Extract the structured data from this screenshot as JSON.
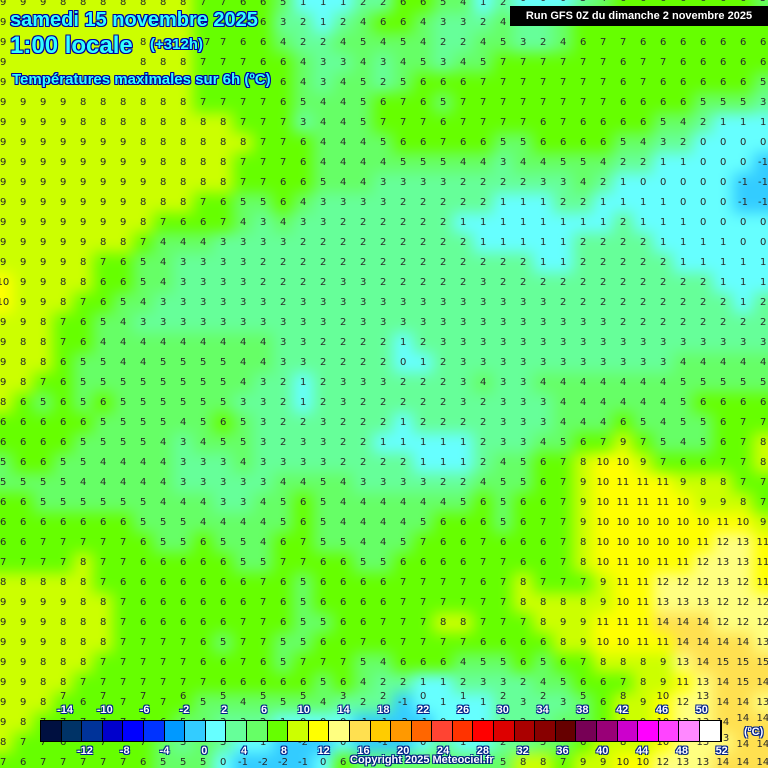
{
  "header": {
    "date": "samedi 15 novembre 2025",
    "time": "1:00 locale",
    "lead": "(+312h)",
    "parameter": "Températures maximales sur 6h (ºC)",
    "run": "Run GFS 0Z du dimanche 2 novembre 2025"
  },
  "footer": {
    "copyright": "Copyright 2025 Meteociel.fr"
  },
  "legend": {
    "unit": "(ºC)",
    "colors": [
      "#001040",
      "#003366",
      "#003399",
      "#0000cc",
      "#0000ff",
      "#0033ff",
      "#0099ff",
      "#33ccff",
      "#66ffff",
      "#66ff99",
      "#66ff66",
      "#66ff00",
      "#ccff00",
      "#ffff00",
      "#ffff80",
      "#ffe050",
      "#ffcc00",
      "#ff9900",
      "#ff6600",
      "#ff4433",
      "#ff3300",
      "#ff0000",
      "#dd0000",
      "#aa0000",
      "#880000",
      "#660000",
      "#770055",
      "#990077",
      "#cc00cc",
      "#ff00ff",
      "#ff44ff",
      "#ff88ff",
      "#ffaaff",
      "#ffffff"
    ],
    "labels_top": [
      "-14",
      "-10",
      "-6",
      "-2",
      "2",
      "6",
      "10",
      "14",
      "18",
      "22",
      "26",
      "30",
      "34",
      "38",
      "42",
      "46",
      "50"
    ],
    "labels_bottom": [
      "-12",
      "-8",
      "-4",
      "0",
      "4",
      "8",
      "12",
      "16",
      "20",
      "24",
      "28",
      "32",
      "36",
      "40",
      "44",
      "48",
      "52"
    ]
  },
  "grid_values": [
    "9 9 9 8 8 8 8 8 8 8 7 7 6 6 5 1 1 1 2 2 6 6 5 4 1 2 0 0 0 3 4 6 6 6 6 6 6 6 5",
    "9 9 9 8 8 8 8 8 8 8 7 7 7 6 3 2 1 2 4 6 6 4 3 3 2 4 3 2 4 6 7 7 6 6 6 6 6 6 6",
    "9 9 9 8 8 8 8 8 8 8 7 7 6 6 4 2 2 4 5 4 5 4 2 2 4 5 3 2 4 6 7 7 6 6 6 6 6 6 6",
    "9 9 9 8 8 8 8 8 8 8 7 7 7 6 6 4 3 3 4 3 4 5 3 4 5 7 7 7 7 7 7 6 7 7 6 6 6 6 6",
    "9 9 9 9 8 8 8 8 8 8 7 7 7 6 6 4 3 4 5 2 5 6 6 6 7 7 7 7 7 7 7 6 7 6 6 6 6 6 5",
    "9 9 9 9 8 8 8 8 8 8 7 7 7 7 6 5 4 4 5 6 7 6 5 7 7 7 7 7 7 7 7 6 6 6 6 5 5 5 3",
    "9 9 9 9 8 8 8 8 8 8 8 8 7 7 7 3 4 4 5 7 7 7 6 7 7 7 7 6 7 6 6 6 6 5 4 2 1 1 1",
    "9 9 9 9 9 9 9 8 8 8 8 8 8 7 7 6 4 4 4 5 6 6 7 6 6 5 5 6 6 6 6 5 4 3 2 0 0 0 0",
    "9 9 9 9 9 9 9 9 8 8 8 8 7 7 7 6 4 4 4 4 5 5 5 4 4 3 4 4 5 5 4 2 2 1 1 0 0 0 -1",
    "9 9 9 9 9 9 9 9 8 8 8 8 7 7 6 6 5 4 4 3 3 3 3 2 2 2 2 3 3 4 2 1 0 0 0 0 0 -1 -1",
    "9 9 9 9 9 9 9 8 8 8 7 6 5 5 6 4 3 3 3 3 2 2 2 2 2 1 1 1 2 2 1 1 1 1 0 0 0 -1 -1",
    "9 9 9 9 9 9 9 8 7 6 6 7 4 3 4 3 3 2 2 2 2 2 2 1 1 1 1 1 1 1 1 2 1 1 1 0 0 0 0",
    "9 9 9 9 9 8 8 7 4 4 4 3 3 3 3 2 2 2 2 2 2 2 2 2 1 1 1 1 1 2 2 2 2 1 1 1 1 0 0",
    "9 9 9 9 8 7 6 5 4 3 3 3 3 2 2 2 2 2 2 2 2 2 2 2 2 2 2 1 1 2 2 2 2 2 1 1 1 1 1",
    "10 9 9 8 8 6 6 5 4 3 3 3 3 2 2 2 2 3 3 2 2 2 2 2 3 2 2 2 2 2 2 2 2 2 2 2 1 1 1",
    "10 9 9 8 7 6 5 4 3 3 3 3 3 3 2 3 3 3 3 3 3 3 3 3 3 3 3 3 2 2 2 2 2 2 2 2 2 1 2",
    "9 9 8 7 6 5 4 3 3 3 3 3 3 3 3 3 3 2 3 3 3 3 3 3 3 3 3 3 3 3 3 2 2 2 2 2 2 2 2",
    "9 8 8 7 6 4 4 4 4 4 4 4 4 4 3 3 2 2 2 2 1 2 3 3 3 3 3 3 3 3 3 3 3 3 3 3 3 3 3",
    "9 8 8 6 5 5 4 4 5 5 5 5 4 4 3 3 2 2 2 2 0 1 2 3 3 3 3 3 3 3 3 3 3 3 4 4 4 4 4",
    "9 8 7 6 5 5 5 5 5 5 5 5 4 3 2 1 2 3 3 3 2 2 2 3 4 3 3 4 4 4 4 4 4 4 5 5 5 5 5",
    "8 6 5 6 5 6 5 5 5 5 5 5 3 3 2 1 2 3 2 2 2 2 2 3 2 3 3 3 4 4 4 4 4 4 5 6 6 6 6",
    "6 6 6 6 6 5 5 5 5 4 5 6 5 3 2 2 3 2 2 2 1 2 2 2 2 3 3 3 4 4 4 6 5 4 5 5 6 7 7",
    "6 6 6 6 5 5 5 5 4 3 4 5 5 3 2 3 3 2 2 1 1 1 1 1 2 3 3 4 5 6 7 9 7 5 4 5 6 7 8",
    "5 6 6 5 5 4 4 4 4 3 3 3 4 3 3 3 3 2 2 2 2 1 1 1 2 4 5 6 7 8 10 10 9 7 6 6 7 7 8",
    "5 5 5 5 4 4 4 4 4 3 3 3 3 3 4 4 5 4 3 3 3 3 2 2 4 5 5 6 7 9 10 11 11 11 9 8 8 7 7",
    "6 6 5 5 5 5 5 5 4 4 4 3 3 4 5 6 5 4 4 4 4 4 4 5 6 5 6 6 7 9 10 11 11 11 10 9 9 8 7",
    "6 6 6 6 6 6 6 5 5 5 4 4 4 4 5 6 5 4 4 4 4 5 6 6 6 5 6 7 7 9 10 10 10 10 10 10 11 10 9",
    "6 6 7 7 7 7 7 6 5 5 6 5 5 4 6 7 5 5 4 4 5 7 6 6 7 6 6 6 7 8 10 10 10 10 10 11 12 13 11",
    "7 7 7 7 8 7 7 6 6 6 6 6 5 5 7 7 6 6 5 5 6 6 6 6 7 7 6 6 7 8 10 11 10 11 11 12 13 13 11",
    "8 8 8 8 8 7 6 6 6 6 6 6 6 7 6 5 6 6 6 6 7 7 7 7 6 7 8 7 7 7 9 11 11 12 12 12 13 12 11",
    "9 9 9 9 8 8 7 6 6 6 6 6 6 7 6 5 6 6 6 6 7 7 7 7 7 7 8 8 8 8 9 10 11 13 13 13 12 12 12",
    "9 9 9 8 8 8 7 6 6 6 6 6 7 7 6 5 5 6 6 7 7 7 8 8 7 7 7 8 9 9 11 11 11 14 14 14 12 12 12",
    "9 9 9 8 8 8 7 7 7 7 6 5 7 7 5 5 6 6 7 6 7 7 7 7 6 6 6 6 8 9 10 10 11 11 14 14 14 14 13",
    "9 9 8 8 8 7 7 7 7 7 6 6 7 6 5 7 7 7 5 4 6 6 6 4 5 5 6 5 6 7 8 8 8 9 13 14 15 15 15",
    "9 9 8 8 7 7 7 7 7 7 7 6 6 6 6 6 5 6 4 2 2 1 1 2 3 3 2 4 5 6 6 7 8 9 11 13 14 15 14",
    "9 9 8 7 6 7 7 7 7 6 5 5 4 5 5 5 4 3 2 2 -1 0 1 1 1 2 3 2 3 5 6 8 9 10 12 13 14 14 13",
    "9 8 7 7 7 7 7 7 6 5 4 3 3 2 1 0 0 0 -1 -1 -2 -1 0 1 1 2 2 3 4 5 7 8 9 10 12 13 14 14 14",
    "8 7 7 6 6 7 7 7 5 3 5 3 1 1 -2 -2 -1 0 -1 -1 -2 0 2 1 0 2 3 5 5 6 8 8 8 10 12 13 13 14 14",
    "7 6 7 7 7 7 7 6 5 5 5 0 -1 -2 -2 -1 0 6 5 5 5 5 5 5 5 5 8 8 7 9 9 10 10 12 13 13 14 14 14"
  ]
}
